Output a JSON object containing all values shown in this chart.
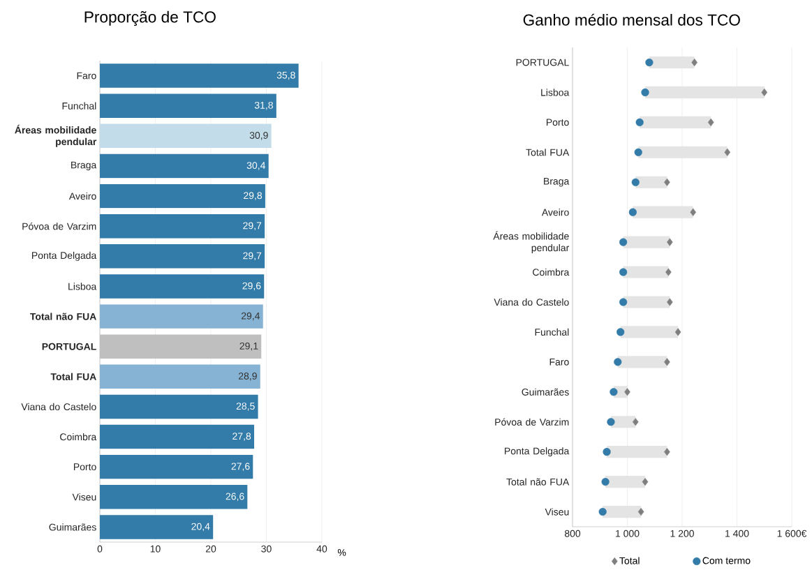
{
  "chart_data": [
    {
      "type": "bar",
      "orientation": "horizontal",
      "title": "Proporção de TCO",
      "xlabel": "%",
      "categories": [
        "Faro",
        "Funchal",
        "Áreas mobilidade pendular",
        "Braga",
        "Aveiro",
        "Póvoa de Varzim",
        "Ponta Delgada",
        "Lisboa",
        "Total não FUA",
        "PORTUGAL",
        "Total FUA",
        "Viana do Castelo",
        "Coimbra",
        "Porto",
        "Viseu",
        "Guimarães"
      ],
      "values": [
        35.8,
        31.8,
        30.9,
        30.4,
        29.8,
        29.7,
        29.7,
        29.6,
        29.4,
        29.1,
        28.9,
        28.5,
        27.8,
        27.6,
        26.6,
        20.4
      ],
      "value_labels": [
        "35,8",
        "31,8",
        "30,9",
        "30,4",
        "29,8",
        "29,7",
        "29,7",
        "29,6",
        "29,4",
        "29,1",
        "28,9",
        "28,5",
        "27,8",
        "27,6",
        "26,6",
        "20,4"
      ],
      "colors": [
        "#337ba8",
        "#337ba8",
        "#c3dce9",
        "#337ba8",
        "#337ba8",
        "#337ba8",
        "#337ba8",
        "#337ba8",
        "#86b3d3",
        "#bfbfbf",
        "#86b3d3",
        "#337ba8",
        "#337ba8",
        "#337ba8",
        "#337ba8",
        "#337ba8"
      ],
      "xlim": [
        0,
        40
      ],
      "xticks": [
        0,
        10,
        20,
        30,
        40
      ],
      "grid": "x"
    },
    {
      "type": "bar",
      "orientation": "horizontal",
      "title": "Ganho médio mensal dos TCO",
      "categories": [
        "PORTUGAL",
        "Lisboa",
        "Porto",
        "Total FUA",
        "Braga",
        "Aveiro",
        "Áreas mobilidade pendular",
        "Coimbra",
        "Viana do Castelo",
        "Funchal",
        "Faro",
        "Guimarães",
        "Póvoa de Varzim",
        "Ponta Delgada",
        "Total não FUA",
        "Viseu"
      ],
      "series": [
        {
          "type": "bar",
          "color": "#e4e4e4",
          "base": [
            1080,
            1065,
            1045,
            1040,
            1030,
            1020,
            985,
            985,
            985,
            975,
            965,
            950,
            940,
            925,
            920,
            910
          ],
          "values": [
            165,
            435,
            260,
            325,
            115,
            220,
            170,
            165,
            170,
            210,
            180,
            50,
            90,
            220,
            145,
            140
          ]
        },
        {
          "type": "scatter",
          "name": "Total",
          "color": "#7f7f7f",
          "marker": "diamond",
          "values": [
            1245,
            1500,
            1305,
            1365,
            1145,
            1240,
            1155,
            1150,
            1155,
            1185,
            1145,
            1000,
            1030,
            1145,
            1065,
            1050
          ]
        },
        {
          "type": "scatter",
          "name": "Com termo",
          "color": "#337ba8",
          "marker": "circle",
          "values": [
            1080,
            1065,
            1045,
            1040,
            1030,
            1020,
            985,
            985,
            985,
            975,
            965,
            950,
            940,
            925,
            920,
            910
          ]
        }
      ],
      "xlim": [
        800,
        1600
      ],
      "xticks": [
        800,
        {
          "value": 1000,
          "label": "1 000"
        },
        {
          "value": 1200,
          "label": "1 200"
        },
        {
          "value": 1400,
          "label": "1 400"
        },
        {
          "value": 1600,
          "label": "1 600€"
        }
      ],
      "grid": "x",
      "legend": "bottom"
    }
  ]
}
